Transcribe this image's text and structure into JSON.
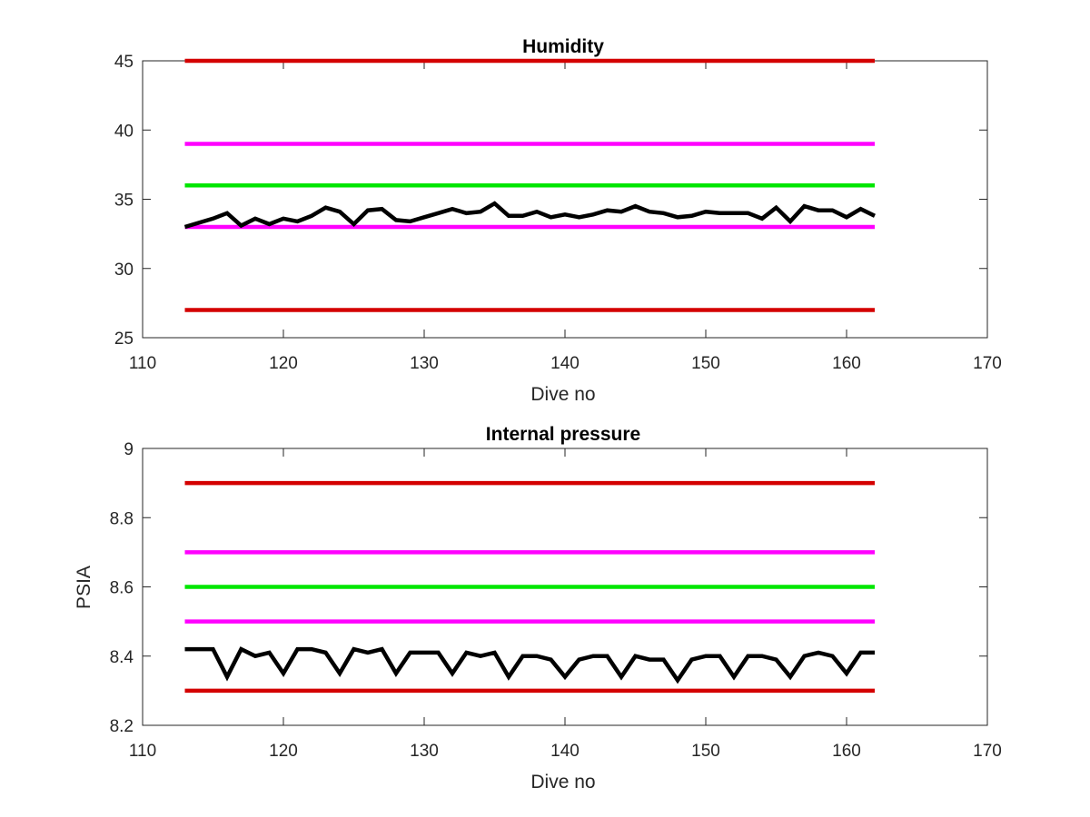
{
  "chart_data": [
    {
      "type": "line",
      "title": "Humidity",
      "xlabel": "Dive no",
      "ylabel": "",
      "xlim": [
        110,
        170
      ],
      "ylim": [
        25,
        45
      ],
      "xticks": [
        "110",
        "120",
        "130",
        "140",
        "150",
        "160",
        "170"
      ],
      "yticks": [
        "25",
        "30",
        "35",
        "40",
        "45"
      ],
      "grid": false,
      "thresholds": [
        {
          "y": 45,
          "x": [
            113,
            162
          ],
          "color": "#d40000"
        },
        {
          "y": 39,
          "x": [
            113,
            162
          ],
          "color": "#ff00ff"
        },
        {
          "y": 36,
          "x": [
            113,
            162
          ],
          "color": "#00e600"
        },
        {
          "y": 33,
          "x": [
            113,
            162
          ],
          "color": "#ff00ff"
        },
        {
          "y": 27,
          "x": [
            113,
            162
          ],
          "color": "#d40000"
        }
      ],
      "series": [
        {
          "color": "#000000",
          "x": [
            113,
            114,
            115,
            116,
            117,
            118,
            119,
            120,
            121,
            122,
            123,
            124,
            125,
            126,
            127,
            128,
            129,
            130,
            131,
            132,
            133,
            134,
            135,
            136,
            137,
            138,
            139,
            140,
            141,
            142,
            143,
            144,
            145,
            146,
            147,
            148,
            149,
            150,
            151,
            152,
            153,
            154,
            155,
            156,
            157,
            158,
            159,
            160,
            161,
            162
          ],
          "values": [
            33.0,
            33.3,
            33.6,
            34.0,
            33.1,
            33.6,
            33.2,
            33.6,
            33.4,
            33.8,
            34.4,
            34.1,
            33.2,
            34.2,
            34.3,
            33.5,
            33.4,
            33.7,
            34.0,
            34.3,
            34.0,
            34.1,
            34.7,
            33.8,
            33.8,
            34.1,
            33.7,
            33.9,
            33.7,
            33.9,
            34.2,
            34.1,
            34.5,
            34.1,
            34.0,
            33.7,
            33.8,
            34.1,
            34.0,
            34.0,
            34.0,
            33.6,
            34.4,
            33.4,
            34.5,
            34.2,
            34.2,
            33.7,
            34.3,
            33.8
          ]
        }
      ]
    },
    {
      "type": "line",
      "title": "Internal pressure",
      "xlabel": "Dive no",
      "ylabel": "PSIA",
      "xlim": [
        110,
        170
      ],
      "ylim": [
        8.2,
        9
      ],
      "xticks": [
        "110",
        "120",
        "130",
        "140",
        "150",
        "160",
        "170"
      ],
      "yticks": [
        "8.2",
        "8.4",
        "8.6",
        "8.8",
        "9"
      ],
      "grid": false,
      "thresholds": [
        {
          "y": 8.9,
          "x": [
            113,
            162
          ],
          "color": "#d40000"
        },
        {
          "y": 8.7,
          "x": [
            113,
            162
          ],
          "color": "#ff00ff"
        },
        {
          "y": 8.6,
          "x": [
            113,
            162
          ],
          "color": "#00e600"
        },
        {
          "y": 8.5,
          "x": [
            113,
            162
          ],
          "color": "#ff00ff"
        },
        {
          "y": 8.3,
          "x": [
            113,
            162
          ],
          "color": "#d40000"
        }
      ],
      "series": [
        {
          "color": "#000000",
          "x": [
            113,
            114,
            115,
            116,
            117,
            118,
            119,
            120,
            121,
            122,
            123,
            124,
            125,
            126,
            127,
            128,
            129,
            130,
            131,
            132,
            133,
            134,
            135,
            136,
            137,
            138,
            139,
            140,
            141,
            142,
            143,
            144,
            145,
            146,
            147,
            148,
            149,
            150,
            151,
            152,
            153,
            154,
            155,
            156,
            157,
            158,
            159,
            160,
            161,
            162
          ],
          "values": [
            8.42,
            8.42,
            8.42,
            8.34,
            8.42,
            8.4,
            8.41,
            8.35,
            8.42,
            8.42,
            8.41,
            8.35,
            8.42,
            8.41,
            8.42,
            8.35,
            8.41,
            8.41,
            8.41,
            8.35,
            8.41,
            8.4,
            8.41,
            8.34,
            8.4,
            8.4,
            8.39,
            8.34,
            8.39,
            8.4,
            8.4,
            8.34,
            8.4,
            8.39,
            8.39,
            8.33,
            8.39,
            8.4,
            8.4,
            8.34,
            8.4,
            8.4,
            8.39,
            8.34,
            8.4,
            8.41,
            8.4,
            8.35,
            8.41,
            8.41
          ]
        }
      ]
    }
  ]
}
